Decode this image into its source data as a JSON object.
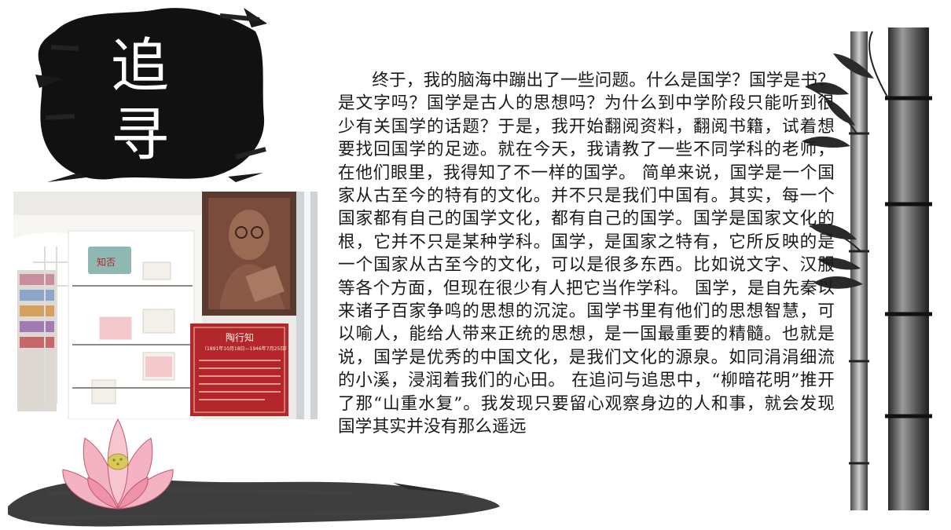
{
  "title": {
    "chars": [
      "追",
      "寻"
    ]
  },
  "article": {
    "text": "终于，我的脑海中蹦出了一些问题。什么是国学？国学是书？是文字吗？国学是古人的思想吗？为什么到中学阶段只能听到很少有关国学的话题？于是，我开始翻阅资料，翻阅书籍，试着想要找回国学的足迹。就在今天，我请教了一些不同学科的老师，在他们眼里，我得知了不一样的国学。 简单来说，国学是一个国家从古至今的特有的文化。并不只是我们中国有。其实，每一个国家都有自己的国学文化，都有自己的国学。国学是国家文化的根，它并不只是某种学科。国学，是国家之特有，它所反映的是一个国家从古至今的文化，可以是很多东西。比如说文字、汉服等各个方面，但现在很少有人把它当作学科。 国学，是自先秦以来诸子百家争鸣的思想的沉淀。国学书里有他们的思想智慧，可以喻人，能给人带来正统的思想，是一国最重要的精髓。也就是说，国学是优秀的中国文化，是我们文化的源泉。如同涓涓细流的小溪，浸润着我们的心田。 在追问与追思中，“柳暗花明”推开了那“山重水复”。我发现只要留心观察身边的人和事，就会发现国学其实并没有那么遥远"
  },
  "photo": {
    "shelf_sign": "知否",
    "plaque_name": "陶行知",
    "plaque_dates": "（1891年10月18日—1946年7月25日）"
  },
  "colors": {
    "ink": "#111111",
    "plaque_red": "#b3262b",
    "lotus_pink": "#e98aa0"
  }
}
